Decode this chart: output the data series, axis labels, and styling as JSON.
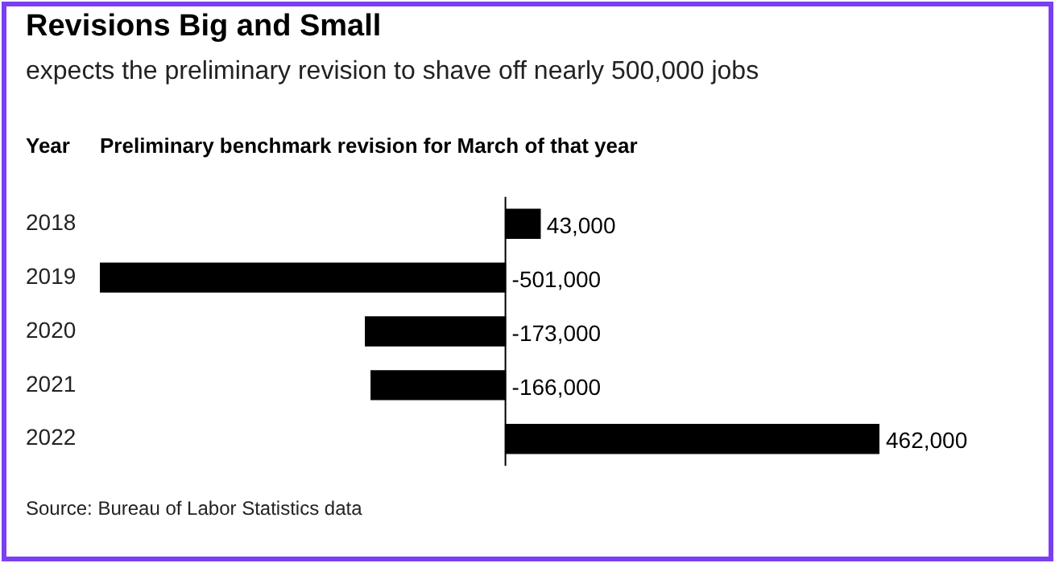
{
  "chart_data": {
    "type": "bar",
    "orientation": "horizontal",
    "title": "Revisions Big and Small",
    "subtitle": "expects the preliminary revision to shave off nearly 500,000 jobs",
    "ylabel": "Year",
    "xlabel": "Preliminary benchmark revision for March of that year",
    "categories": [
      "2018",
      "2019",
      "2020",
      "2021",
      "2022"
    ],
    "values": [
      43000,
      -501000,
      -173000,
      -166000,
      462000
    ],
    "value_labels": [
      "43,000",
      "-501,000",
      "-173,000",
      "-166,000",
      "462,000"
    ],
    "color": "#000000",
    "legend": false,
    "grid": false,
    "annotations": [
      "Source: Bureau of Labor Statistics data"
    ]
  }
}
